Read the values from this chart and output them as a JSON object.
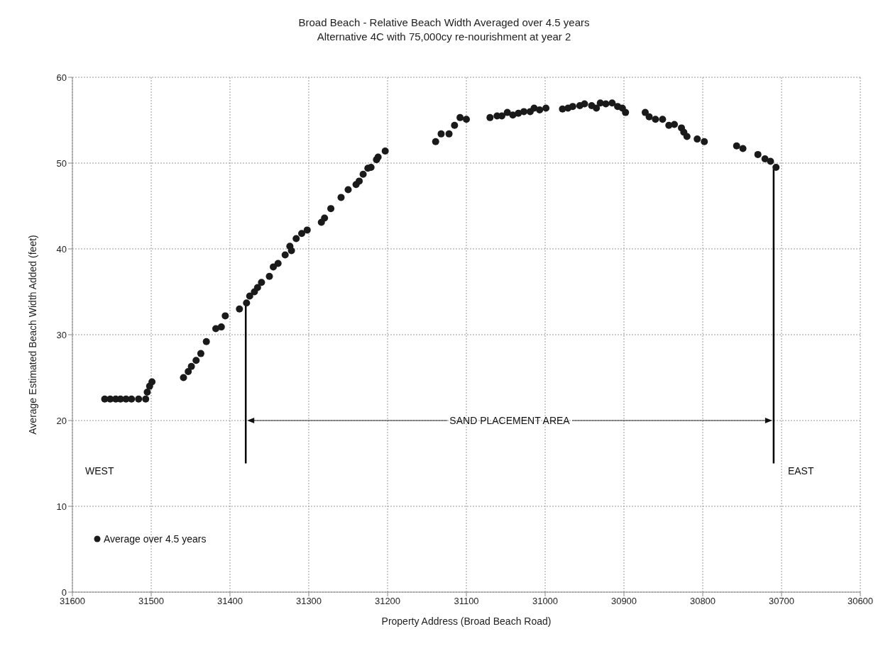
{
  "chart_data": {
    "type": "scatter",
    "title": "Broad Beach - Relative Beach Width Averaged over 4.5 years",
    "subtitle": "Alternative 4C with 75,000cy re-nourishment at year 2",
    "xlabel": "Property Address (Broad Beach Road)",
    "ylabel": "Average Estimated Beach Width Added (feet)",
    "xlim": [
      31600,
      30600
    ],
    "xticks": [
      31600,
      31500,
      31400,
      31300,
      31200,
      31100,
      31000,
      30900,
      30800,
      30700,
      30600
    ],
    "ylim": [
      0,
      60
    ],
    "yticks": [
      0,
      10,
      20,
      30,
      40,
      50,
      60
    ],
    "grid": true,
    "legend": "bottom left",
    "marker": "circle",
    "series": [
      {
        "name": "Average over 4.5 years",
        "color": "#1a1a1a",
        "x": [
          31559,
          31552,
          31545,
          31539,
          31532,
          31525,
          31516,
          31507,
          31505,
          31502,
          31499,
          31459,
          31453,
          31449,
          31443,
          31437,
          31430,
          31418,
          31411,
          31406,
          31388,
          31379,
          31375,
          31369,
          31365,
          31360,
          31350,
          31345,
          31339,
          31330,
          31324,
          31322,
          31316,
          31309,
          31302,
          31284,
          31280,
          31272,
          31259,
          31250,
          31240,
          31236,
          31231,
          31225,
          31221,
          31214,
          31212,
          31203,
          31139,
          31132,
          31122,
          31115,
          31108,
          31100,
          31070,
          31061,
          31055,
          31048,
          31041,
          31034,
          31027,
          31019,
          31014,
          31007,
          30999,
          30978,
          30971,
          30965,
          30956,
          30950,
          30941,
          30935,
          30930,
          30923,
          30915,
          30908,
          30902,
          30898,
          30873,
          30868,
          30860,
          30851,
          30843,
          30836,
          30827,
          30824,
          30820,
          30807,
          30798,
          30757,
          30749,
          30730,
          30721,
          30714,
          30707
        ],
        "values": [
          22.5,
          22.5,
          22.5,
          22.5,
          22.5,
          22.5,
          22.5,
          22.5,
          23.3,
          24,
          24.5,
          25,
          25.7,
          26.3,
          27,
          27.8,
          29.2,
          30.7,
          30.9,
          32.2,
          33,
          33.7,
          34.5,
          35,
          35.5,
          36.1,
          36.8,
          37.9,
          38.3,
          39.3,
          40.3,
          39.8,
          41.2,
          41.8,
          42.2,
          43.1,
          43.6,
          44.7,
          46,
          46.9,
          47.5,
          47.9,
          48.7,
          49.4,
          49.5,
          50.4,
          50.7,
          51.4,
          52.5,
          53.4,
          53.4,
          54.4,
          55.3,
          55.1,
          55.3,
          55.5,
          55.5,
          55.9,
          55.6,
          55.8,
          56,
          56,
          56.4,
          56.2,
          56.4,
          56.3,
          56.4,
          56.6,
          56.7,
          56.9,
          56.7,
          56.4,
          57,
          56.9,
          57,
          56.6,
          56.4,
          55.9,
          55.9,
          55.4,
          55.1,
          55.1,
          54.4,
          54.5,
          54.1,
          53.6,
          53.1,
          52.8,
          52.5,
          52,
          51.7,
          51,
          50.5,
          50.2,
          49.5
        ]
      },
      {
        "type": "line",
        "marker": "none",
        "color": "#000000",
        "x": [
          31380,
          31380
        ],
        "values": [
          15,
          33.5
        ]
      },
      {
        "type": "line",
        "marker": "none",
        "color": "#000000",
        "x": [
          30710,
          30710
        ],
        "values": [
          15,
          49.3
        ]
      }
    ],
    "annotations": [
      "WEST",
      "EAST",
      {
        "text": "SAND PLACEMENT AREA",
        "x": 31380,
        "y": 20
      }
    ]
  }
}
